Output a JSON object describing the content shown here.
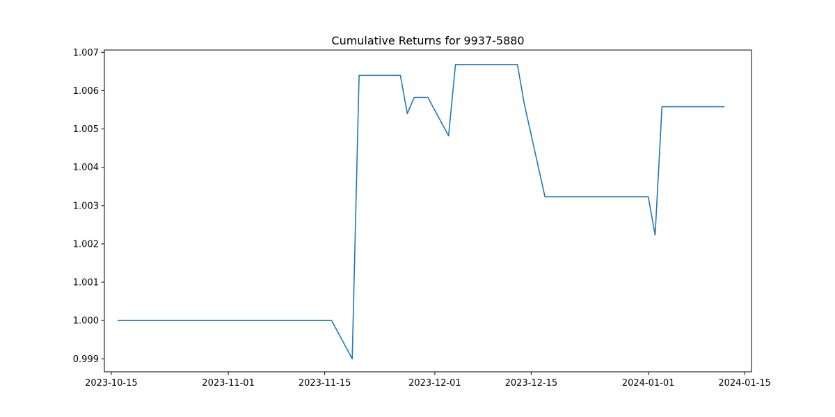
{
  "chart_data": {
    "type": "line",
    "title": "Cumulative Returns for 9937-5880",
    "xlabel": "",
    "ylabel": "",
    "x_axis_type": "date",
    "xlim": [
      "2023-10-14",
      "2024-01-16"
    ],
    "ylim": [
      0.99866,
      1.00706
    ],
    "x_ticks": [
      "2023-10-15",
      "2023-11-01",
      "2023-11-15",
      "2023-12-01",
      "2023-12-15",
      "2024-01-01",
      "2024-01-15"
    ],
    "y_ticks": [
      "0.999",
      "1.000",
      "1.001",
      "1.002",
      "1.003",
      "1.004",
      "1.005",
      "1.006",
      "1.007"
    ],
    "grid": false,
    "legend": "none",
    "line_color": "#1f77b4",
    "series": [
      {
        "x": [
          "2023-10-16",
          "2023-11-16",
          "2023-11-19",
          "2023-11-20",
          "2023-11-26",
          "2023-11-27",
          "2023-11-28",
          "2023-11-30",
          "2023-12-03",
          "2023-12-04",
          "2023-12-13",
          "2023-12-14",
          "2023-12-17",
          "2024-01-01",
          "2024-01-02",
          "2024-01-03",
          "2024-01-12"
        ],
        "y": [
          1.0,
          1.0,
          0.999,
          1.0064,
          1.0064,
          1.0054,
          1.00582,
          1.00582,
          1.00482,
          1.00668,
          1.00668,
          1.00565,
          1.00323,
          1.00323,
          1.00223,
          1.00558,
          1.00558
        ]
      }
    ]
  }
}
